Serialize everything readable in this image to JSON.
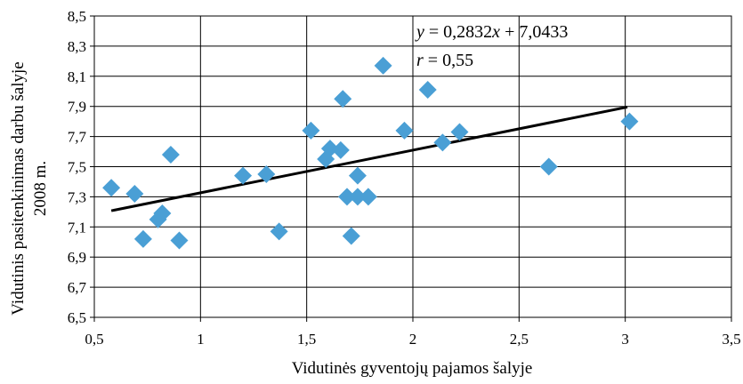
{
  "chart_data": {
    "type": "scatter",
    "xlabel": "Vidutinės gyventojų pajamos šalyje",
    "ylabel_line1": "Vidutinis pasitenkinimas darbu šalyje",
    "ylabel_line2": "2008 m.",
    "xlim": [
      0.5,
      3.5
    ],
    "ylim": [
      6.5,
      8.5
    ],
    "x_ticks": [
      0.5,
      1,
      1.5,
      2,
      2.5,
      3,
      3.5
    ],
    "y_ticks": [
      6.5,
      6.7,
      6.9,
      7.1,
      7.3,
      7.5,
      7.7,
      7.9,
      8.1,
      8.3,
      8.5
    ],
    "x_tick_labels": [
      "0,5",
      "1",
      "1,5",
      "2",
      "2,5",
      "3",
      "3,5"
    ],
    "y_tick_labels": [
      "6,5",
      "6,7",
      "6,9",
      "7,1",
      "7,3",
      "7,5",
      "7,7",
      "7,9",
      "8,1",
      "8,3",
      "8,5"
    ],
    "grid": true,
    "marker_color": "#4a9fd5",
    "trendline_color": "#000000",
    "annotations": {
      "equation_y": "y",
      "equation_rest": " = 0,2832",
      "equation_x": "x",
      "equation_end": " + 7,0433",
      "r_symbol": "r",
      "r_rest": " = 0,55"
    },
    "trendline": {
      "slope": 0.2832,
      "intercept": 7.0433,
      "x_range": [
        0.58,
        3.01
      ]
    },
    "points": [
      {
        "x": 0.58,
        "y": 7.36
      },
      {
        "x": 0.69,
        "y": 7.32
      },
      {
        "x": 0.73,
        "y": 7.02
      },
      {
        "x": 0.8,
        "y": 7.15
      },
      {
        "x": 0.82,
        "y": 7.19
      },
      {
        "x": 0.86,
        "y": 7.58
      },
      {
        "x": 0.9,
        "y": 7.01
      },
      {
        "x": 1.2,
        "y": 7.44
      },
      {
        "x": 1.31,
        "y": 7.45
      },
      {
        "x": 1.37,
        "y": 7.07
      },
      {
        "x": 1.52,
        "y": 7.74
      },
      {
        "x": 1.59,
        "y": 7.55
      },
      {
        "x": 1.61,
        "y": 7.62
      },
      {
        "x": 1.66,
        "y": 7.61
      },
      {
        "x": 1.67,
        "y": 7.95
      },
      {
        "x": 1.69,
        "y": 7.3
      },
      {
        "x": 1.71,
        "y": 7.04
      },
      {
        "x": 1.74,
        "y": 7.3
      },
      {
        "x": 1.74,
        "y": 7.44
      },
      {
        "x": 1.79,
        "y": 7.3
      },
      {
        "x": 1.86,
        "y": 8.17
      },
      {
        "x": 1.96,
        "y": 7.74
      },
      {
        "x": 2.07,
        "y": 8.01
      },
      {
        "x": 2.14,
        "y": 7.66
      },
      {
        "x": 2.22,
        "y": 7.73
      },
      {
        "x": 2.64,
        "y": 7.5
      },
      {
        "x": 3.02,
        "y": 7.8
      }
    ]
  }
}
